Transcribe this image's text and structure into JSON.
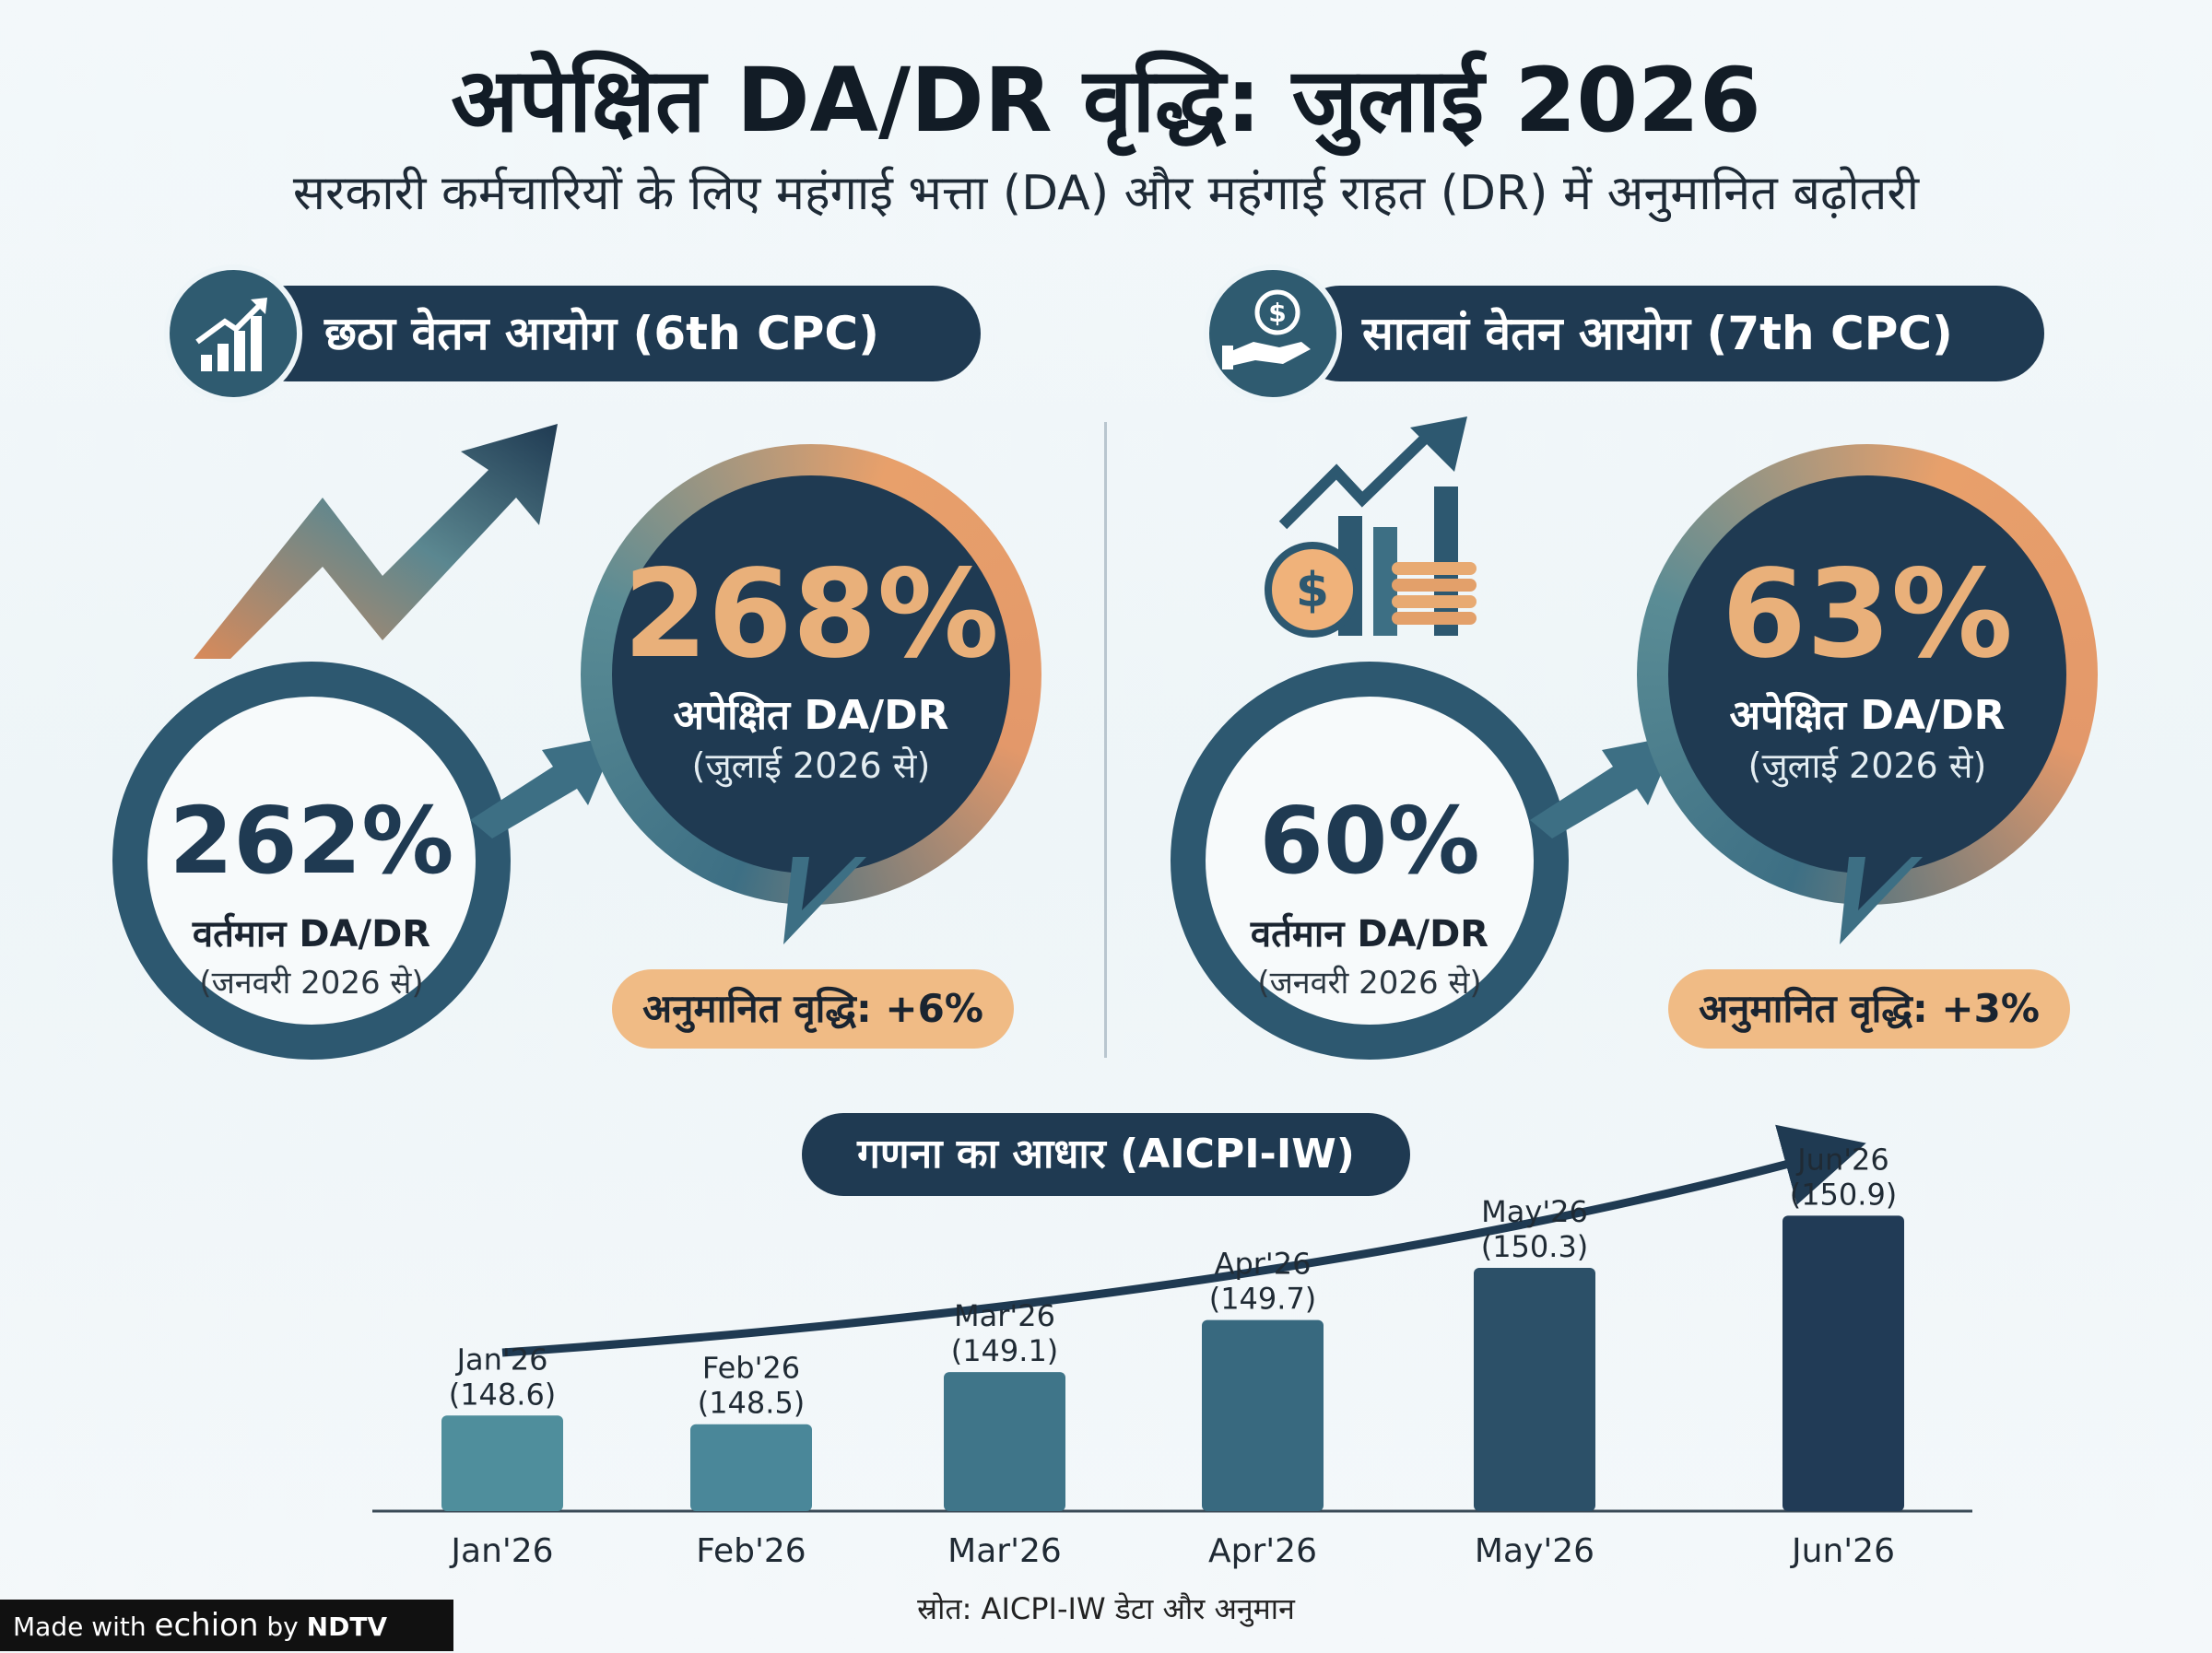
{
  "title": "अपेक्षित DA/DR वृद्धि: जुलाई 2026",
  "subtitle": "सरकारी कर्मचारियों के लिए महंगाई भत्ता (DA) और महंगाई राहत (DR) में अनुमानित बढ़ोतरी",
  "cpc6": {
    "header": "छठा वेतन आयोग (6th CPC)",
    "current_value": "262%",
    "current_label": "वर्तमान DA/DR",
    "current_sub": "(जनवरी 2026 से)",
    "expected_value": "268%",
    "expected_label": "अपेक्षित DA/DR",
    "expected_sub": "(जुलाई 2026 से)",
    "increase": "अनुमानित वृद्धि: +6%",
    "icon": "bar-chart-growth-icon"
  },
  "cpc7": {
    "header": "सातवां वेतन आयोग (7th CPC)",
    "current_value": "60%",
    "current_label": "वर्तमान DA/DR",
    "current_sub": "(जनवरी 2026 से)",
    "expected_value": "63%",
    "expected_label": "अपेक्षित DA/DR",
    "expected_sub": "(जुलाई 2026 से)",
    "increase": "अनुमानित वृद्धि: +3%",
    "icon": "hand-coin-icon"
  },
  "basis_title": "गणना का आधार (AICPI-IW)",
  "chart_data": {
    "type": "bar",
    "title": "गणना का आधार (AICPI-IW)",
    "categories": [
      "Jan'26",
      "Feb'26",
      "Mar'26",
      "Apr'26",
      "May'26",
      "Jun'26"
    ],
    "values": [
      148.6,
      148.5,
      149.1,
      149.7,
      150.3,
      150.9
    ],
    "data_labels": [
      "(148.6)",
      "(148.5)",
      "(149.1)",
      "(149.7)",
      "(150.3)",
      "(150.9)"
    ],
    "xlabel": "",
    "ylabel": "",
    "ylim": [
      147.5,
      151
    ],
    "grid": false,
    "bar_colors": [
      "#4f8e9c",
      "#4a8799",
      "#3f7589",
      "#38697f",
      "#2c5068",
      "#213b56"
    ]
  },
  "source": "स्रोत: AICPI-IW डेटा और अनुमान",
  "footer": {
    "made_with": "Made with",
    "brand": "echion",
    "by": "by",
    "publisher": "NDTV"
  }
}
